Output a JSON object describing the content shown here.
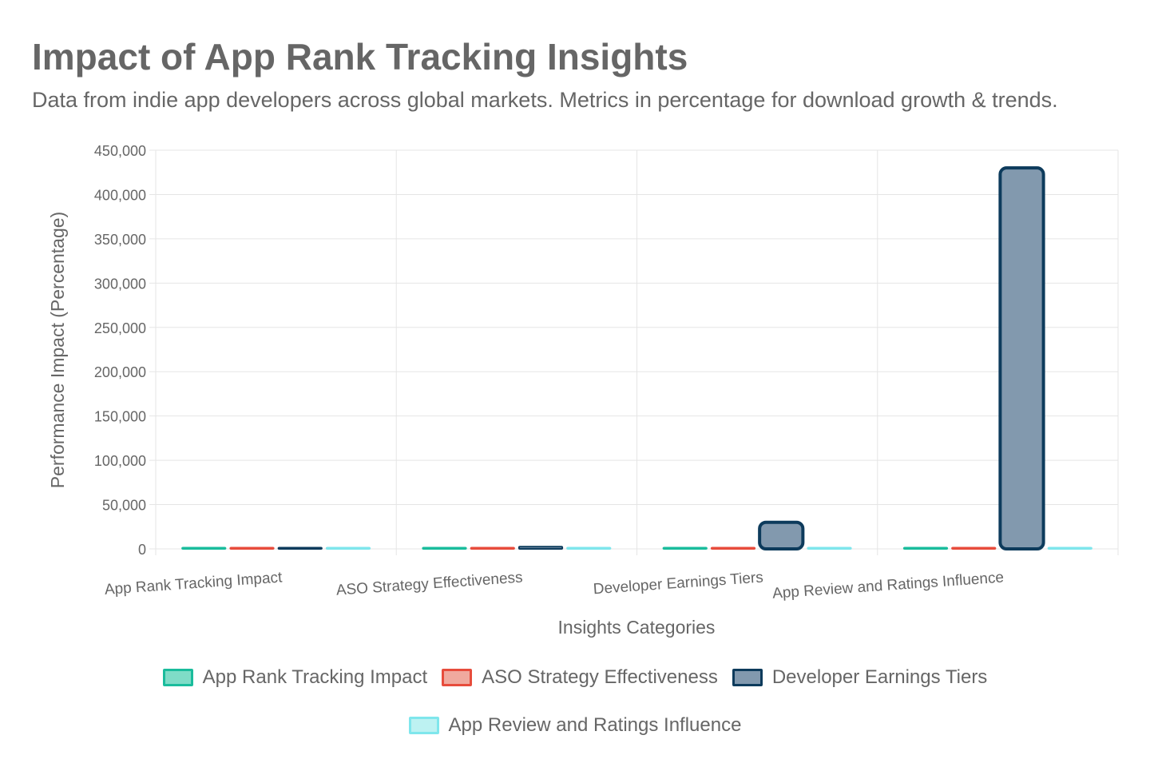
{
  "chart_data": {
    "type": "bar",
    "title": "Impact of App Rank Tracking Insights",
    "subtitle": "Data from indie app developers across global markets. Metrics in percentage for download growth & trends.",
    "xlabel": "Insights Categories",
    "ylabel": "Performance Impact (Percentage)",
    "ylim": [
      0,
      450000
    ],
    "yticks": [
      "0",
      "50,000",
      "100,000",
      "150,000",
      "200,000",
      "250,000",
      "300,000",
      "350,000",
      "400,000",
      "450,000"
    ],
    "ytick_values": [
      0,
      50000,
      100000,
      150000,
      200000,
      250000,
      300000,
      350000,
      400000,
      450000
    ],
    "grid": true,
    "legend_position": "bottom",
    "categories": [
      "App Rank Tracking Impact",
      "ASO Strategy Effectiveness",
      "Developer Earnings Tiers",
      "App Review and Ratings Influence"
    ],
    "series": [
      {
        "name": "App Rank Tracking Impact",
        "values": [
          35,
          40,
          30,
          45
        ],
        "fill": "#7fdcc7",
        "stroke": "#1abc9c"
      },
      {
        "name": "ASO Strategy Effectiveness",
        "values": [
          40,
          50,
          45,
          55
        ],
        "fill": "#f0a99e",
        "stroke": "#e74c3c"
      },
      {
        "name": "Developer Earnings Tiers",
        "values": [
          500,
          2500,
          30000,
          430000
        ],
        "fill": "#8299ae",
        "stroke": "#0d3b5c"
      },
      {
        "name": "App Review and Ratings Influence",
        "values": [
          20,
          25,
          22,
          30
        ],
        "fill": "#bdf2f2",
        "stroke": "#7fe6ec"
      }
    ]
  }
}
